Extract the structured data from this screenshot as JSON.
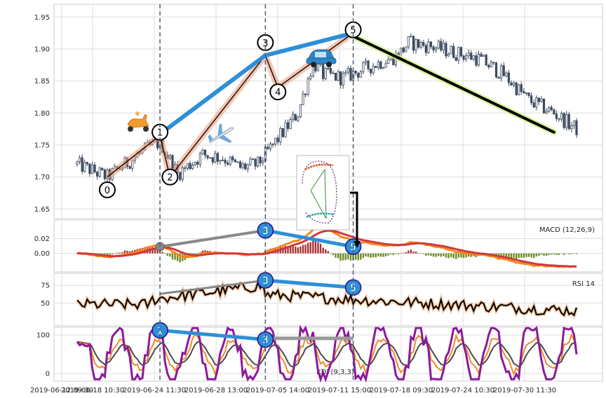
{
  "chart_data": {
    "type": "candlestick",
    "x_tick_labels": [
      "2019-06-12 09:30",
      "2019-06-18 10:30",
      "2019-06-24 11:30",
      "2019-06-28 13:00",
      "2019-07-05 14:00",
      "2019-07-11 15:00",
      "2019-07-18 09:30",
      "2019-07-24 10:30",
      "2019-07-30 11:30"
    ],
    "bar_count": 200,
    "price_panel": {
      "ylim": [
        1.635,
        1.97
      ],
      "yticks": [
        1.65,
        1.7,
        1.75,
        1.8,
        1.85,
        1.9,
        1.95
      ],
      "ytick_labels": [
        "1.65",
        "1.70",
        "1.75",
        "1.80",
        "1.85",
        "1.90",
        "1.95"
      ],
      "price_path": [
        [
          0,
          1.72
        ],
        [
          12,
          1.7
        ],
        [
          28,
          1.745
        ],
        [
          33,
          1.755
        ],
        [
          40,
          1.705
        ],
        [
          50,
          1.735
        ],
        [
          58,
          1.73
        ],
        [
          65,
          1.715
        ],
        [
          72,
          1.72
        ],
        [
          80,
          1.76
        ],
        [
          88,
          1.8
        ],
        [
          94,
          1.88
        ],
        [
          98,
          1.86
        ],
        [
          106,
          1.855
        ],
        [
          118,
          1.875
        ],
        [
          128,
          1.89
        ],
        [
          132,
          1.91
        ],
        [
          140,
          1.905
        ],
        [
          150,
          1.895
        ],
        [
          160,
          1.885
        ],
        [
          170,
          1.86
        ],
        [
          180,
          1.82
        ],
        [
          190,
          1.8
        ],
        [
          199,
          1.775
        ]
      ],
      "waves": {
        "labels": [
          "0",
          "1",
          "2",
          "3",
          "4",
          "5"
        ],
        "points": [
          [
            12,
            1.7
          ],
          [
            33,
            1.765
          ],
          [
            37,
            1.7
          ],
          [
            75,
            1.89
          ],
          [
            80,
            1.84
          ],
          [
            110,
            1.925
          ]
        ],
        "label_positions": [
          [
            12,
            1.68
          ],
          [
            33,
            1.77
          ],
          [
            37,
            1.7
          ],
          [
            75,
            1.91
          ],
          [
            80,
            1.833
          ],
          [
            110,
            1.93
          ]
        ]
      },
      "blue_trend": [
        [
          33,
          1.767
        ],
        [
          75,
          1.89
        ],
        [
          110,
          1.925
        ]
      ],
      "down_trend": [
        [
          110,
          1.92
        ],
        [
          190,
          1.77
        ]
      ],
      "vlines_x": [
        33,
        75,
        110
      ]
    },
    "macd_panel": {
      "label": "MACD (12,26,9)",
      "ylim": [
        -0.025,
        0.045
      ],
      "yticks": [
        0.0,
        0.02
      ],
      "ytick_labels": [
        "0.00",
        "0.02"
      ],
      "gray_line": [
        [
          33,
          0.009
        ],
        [
          75,
          0.031
        ]
      ],
      "blue_line": [
        [
          75,
          0.031
        ],
        [
          110,
          0.009
        ]
      ],
      "labels": [
        "3",
        "5"
      ]
    },
    "rsi_panel": {
      "label": "RSI 14",
      "ylim": [
        18,
        92
      ],
      "yticks": [
        50,
        75
      ],
      "ytick_labels": [
        "50",
        "75"
      ],
      "gray_line": [
        [
          33,
          63
        ],
        [
          75,
          82
        ]
      ],
      "blue_line": [
        [
          75,
          82
        ],
        [
          110,
          72
        ]
      ],
      "labels": [
        "3",
        "5"
      ]
    },
    "kdj_panel": {
      "label": "KDJ (9,3,3)",
      "ylim": [
        -20,
        120
      ],
      "yticks": [
        0,
        100
      ],
      "ytick_labels": [
        "0",
        "100"
      ],
      "blue_line": [
        [
          33,
          112
        ],
        [
          75,
          88
        ]
      ],
      "gray_line": [
        [
          75,
          91
        ],
        [
          110,
          91
        ]
      ],
      "labels": [
        "1",
        "3"
      ]
    },
    "grid": true,
    "icons": [
      "scooter-icon",
      "airplane-icon",
      "car-icon",
      "roller-coaster-icon"
    ]
  }
}
